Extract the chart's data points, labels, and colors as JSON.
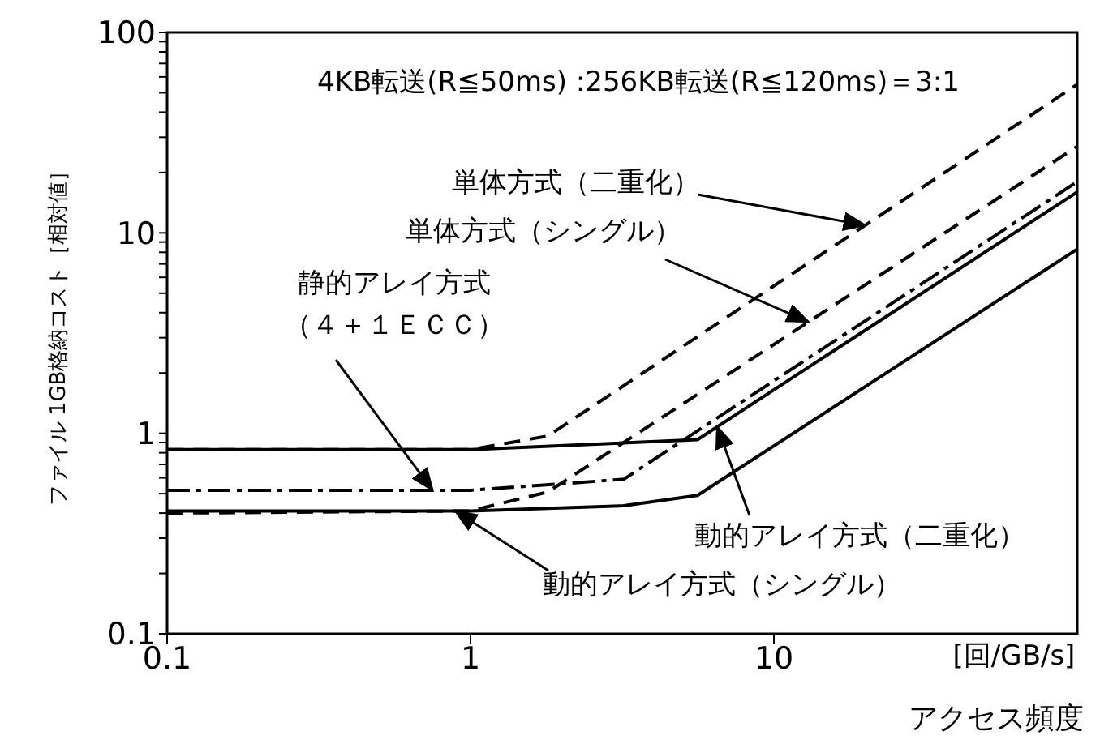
{
  "chart_data": {
    "type": "line",
    "title": "4KB転送(R≦50ms) :256KB転送(R≦120ms)＝3:1",
    "xlabel": "アクセス頻度",
    "ylabel": "ファイル 1GB格納コスト［相対値］",
    "log": "xy",
    "xlim": [
      0.1,
      100
    ],
    "ylim": [
      0.1,
      100
    ],
    "xticks": [
      0.1,
      1,
      10
    ],
    "yticks": [
      0.1,
      {
        "value": 0.2,
        "label": null
      },
      {
        "value": 0.3,
        "label": null
      },
      {
        "value": 0.4,
        "label": null
      },
      {
        "value": 0.5,
        "label": null
      },
      {
        "value": 0.6,
        "label": null
      },
      {
        "value": 0.7,
        "label": null
      },
      {
        "value": 0.8,
        "label": null
      },
      {
        "value": 0.9,
        "label": null
      },
      1,
      {
        "value": 2,
        "label": null
      },
      {
        "value": 3,
        "label": null
      },
      {
        "value": 4,
        "label": null
      },
      {
        "value": 5,
        "label": null
      },
      {
        "value": 6,
        "label": null
      },
      {
        "value": 7,
        "label": null
      },
      {
        "value": 8,
        "label": null
      },
      {
        "value": 9,
        "label": null
      },
      10,
      {
        "value": 20,
        "label": null
      },
      {
        "value": 30,
        "label": null
      },
      {
        "value": 40,
        "label": null
      },
      {
        "value": 50,
        "label": null
      },
      {
        "value": 60,
        "label": null
      },
      {
        "value": 70,
        "label": null
      },
      {
        "value": 80,
        "label": null
      },
      {
        "value": 90,
        "label": null
      },
      100
    ],
    "marker": "none",
    "series": [
      {
        "color": "#000000",
        "line_style": "dashed",
        "x": [
          0.1,
          1,
          1.8,
          100
        ],
        "values": [
          0.83,
          0.83,
          0.97,
          55
        ]
      },
      {
        "color": "#000000",
        "line_style": "dashed",
        "x": [
          0.1,
          1,
          1.8,
          100
        ],
        "values": [
          0.4,
          0.41,
          0.51,
          27
        ]
      },
      {
        "color": "#000000",
        "line_style": "dashdot",
        "x": [
          0.1,
          1,
          3.2,
          100
        ],
        "values": [
          0.52,
          0.52,
          0.59,
          18
        ]
      },
      {
        "color": "#000000",
        "line_style": "solid",
        "x": [
          0.1,
          1,
          5.6,
          100
        ],
        "values": [
          0.83,
          0.83,
          0.93,
          16
        ]
      },
      {
        "color": "#000000",
        "line_style": "solid",
        "x": [
          0.1,
          1,
          3.2,
          5.6,
          100
        ],
        "values": [
          0.41,
          0.41,
          0.435,
          0.49,
          8.3
        ]
      }
    ],
    "annotations": [
      {
        "text": "単体方式（二重化）",
        "x": 20,
        "y": 10.9
      },
      {
        "text": "単体方式（シングル）",
        "x": 13,
        "y": 3.6
      },
      {
        "text": "静的アレイ方式（４＋１ＥＣＣ）",
        "x": 0.75,
        "y": 0.52
      },
      {
        "text": "動的アレイ方式（二重化）",
        "x": 6.5,
        "y": 1.08
      },
      {
        "text": "動的アレイ方式（シングル）",
        "x": 0.89,
        "y": 0.41
      },
      "[回/GB/s]"
    ]
  }
}
